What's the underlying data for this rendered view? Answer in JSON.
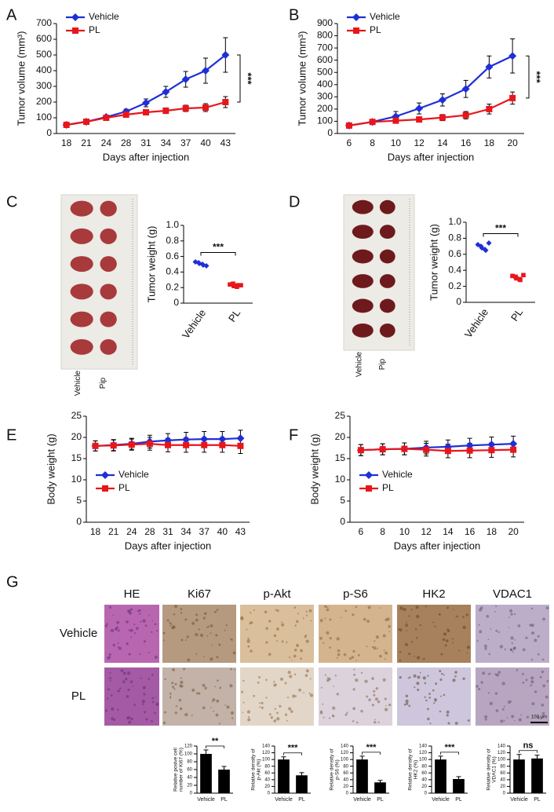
{
  "chart_data": [
    {
      "panel": "A",
      "type": "line",
      "ylabel": "Tumor volume (mm³)",
      "xlabel": "Days after injection",
      "categories": [
        "18",
        "21",
        "24",
        "28",
        "31",
        "34",
        "37",
        "40",
        "43"
      ],
      "series": [
        {
          "name": "Vehicle",
          "color": "#1f2fd6",
          "values": [
            55,
            75,
            105,
            140,
            195,
            265,
            345,
            400,
            500
          ],
          "errors": [
            10,
            10,
            10,
            15,
            25,
            35,
            50,
            80,
            110
          ]
        },
        {
          "name": "PL",
          "color": "#e8161b",
          "values": [
            55,
            75,
            100,
            120,
            135,
            145,
            160,
            165,
            200
          ],
          "errors": [
            10,
            10,
            10,
            12,
            15,
            18,
            20,
            25,
            35
          ]
        }
      ],
      "ylim": [
        0,
        700
      ],
      "yticks": [
        0,
        100,
        200,
        300,
        400,
        500,
        600,
        700
      ],
      "legend": "upper left",
      "annotation": "***"
    },
    {
      "panel": "B",
      "type": "line",
      "ylabel": "Tumor volume (mm³)",
      "xlabel": "Days after injection",
      "categories": [
        "6",
        "8",
        "10",
        "12",
        "14",
        "16",
        "18",
        "20"
      ],
      "series": [
        {
          "name": "Vehicle",
          "color": "#1f2fd6",
          "values": [
            65,
            95,
            140,
            205,
            275,
            365,
            545,
            635
          ],
          "errors": [
            10,
            15,
            40,
            45,
            50,
            70,
            90,
            140
          ]
        },
        {
          "name": "PL",
          "color": "#e8161b",
          "values": [
            65,
            95,
            105,
            115,
            130,
            150,
            200,
            290
          ],
          "errors": [
            10,
            15,
            20,
            20,
            25,
            30,
            40,
            50
          ]
        }
      ],
      "ylim": [
        0,
        900
      ],
      "yticks": [
        0,
        100,
        200,
        300,
        400,
        500,
        600,
        700,
        800,
        900
      ],
      "legend": "upper left",
      "annotation": "***"
    },
    {
      "panel": "C",
      "type": "dot",
      "ylabel": "Tumor weight (g)",
      "photo_labels": [
        "Vehicle",
        "Pip"
      ],
      "categories": [
        "Vehicle",
        "PL"
      ],
      "colors": [
        "#1f2fd6",
        "#e8161b"
      ],
      "values": [
        [
          0.53,
          0.51,
          0.49,
          0.52,
          0.5,
          0.48
        ],
        [
          0.24,
          0.22,
          0.23,
          0.25,
          0.21,
          0.23
        ]
      ],
      "ylim": [
        0,
        1
      ],
      "yticks": [
        0,
        0.2,
        0.4,
        0.6,
        0.8,
        {
          "value": 1,
          "label": "1.0"
        }
      ],
      "annotation": "***"
    },
    {
      "panel": "D",
      "type": "dot",
      "ylabel": "Tumor weight (g)",
      "photo_labels": [
        "Vehicle",
        "Pip"
      ],
      "categories": [
        "Vehicle",
        "PL"
      ],
      "colors": [
        "#1f2fd6",
        "#e8161b"
      ],
      "values": [
        [
          0.72,
          0.68,
          0.65,
          0.7,
          0.66,
          0.74
        ],
        [
          0.33,
          0.3,
          0.28,
          0.32,
          0.29,
          0.34
        ]
      ],
      "ylim": [
        0,
        1
      ],
      "yticks": [
        0,
        0.2,
        0.4,
        0.6,
        0.8,
        {
          "value": 1,
          "label": "1.0"
        }
      ],
      "annotation": "***"
    },
    {
      "panel": "E",
      "type": "line",
      "ylabel": "Body weight (g)",
      "xlabel": "Days after injection",
      "categories": [
        "18",
        "21",
        "24",
        "28",
        "31",
        "34",
        "37",
        "40",
        "43"
      ],
      "series": [
        {
          "name": "Vehicle",
          "color": "#1f2fd6",
          "values": [
            18,
            18.2,
            18.5,
            19,
            19.3,
            19.5,
            19.6,
            19.6,
            19.8
          ],
          "errors": [
            1.2,
            1.3,
            1.3,
            1.5,
            1.6,
            1.7,
            1.8,
            1.8,
            1.9
          ]
        },
        {
          "name": "PL",
          "color": "#e8161b",
          "values": [
            18,
            18.1,
            18.3,
            18.5,
            18.2,
            18.2,
            18.2,
            18.2,
            18
          ],
          "errors": [
            1.2,
            1.3,
            1.3,
            1.5,
            1.6,
            1.7,
            1.7,
            1.7,
            1.8
          ]
        }
      ],
      "ylim": [
        0,
        25
      ],
      "yticks": [
        0,
        5,
        10,
        15,
        20,
        25
      ],
      "legend": "lower left"
    },
    {
      "panel": "F",
      "type": "line",
      "ylabel": "Body weight (g)",
      "xlabel": "Days after injection",
      "categories": [
        "6",
        "8",
        "10",
        "12",
        "14",
        "16",
        "18",
        "20"
      ],
      "series": [
        {
          "name": "Vehicle",
          "color": "#1f2fd6",
          "values": [
            17,
            17.2,
            17.3,
            17.6,
            17.8,
            18.1,
            18.3,
            18.5
          ],
          "errors": [
            1.3,
            1.3,
            1.4,
            1.5,
            1.6,
            1.7,
            1.8,
            1.8
          ]
        },
        {
          "name": "PL",
          "color": "#e8161b",
          "values": [
            17,
            17.2,
            17.3,
            17.1,
            16.8,
            16.9,
            17,
            17.1
          ],
          "errors": [
            1.3,
            1.3,
            1.4,
            1.5,
            1.6,
            1.7,
            1.7,
            1.7
          ]
        }
      ],
      "ylim": [
        0,
        25
      ],
      "yticks": [
        0,
        5,
        10,
        15,
        20,
        25
      ],
      "legend": "lower left"
    },
    {
      "panel": "G",
      "type": "image_grid",
      "columns": [
        "HE",
        "Ki67",
        "p-Akt",
        "p-S6",
        "HK2",
        "VDAC1"
      ],
      "rows": [
        "Vehicle",
        "PL"
      ],
      "scale_bar": "100 μm"
    },
    {
      "type": "bar",
      "ylabel": [
        "Relative posive cell",
        "number of Ki67 (%)"
      ],
      "categories": [
        "Vehicle",
        "PL"
      ],
      "values": [
        100,
        60
      ],
      "errors": [
        10,
        8
      ],
      "color": "#000000",
      "ylim": [
        0,
        120
      ],
      "yticks": [
        0,
        20,
        40,
        60,
        80,
        100,
        120
      ],
      "annotation": "**"
    },
    {
      "type": "bar",
      "ylabel": [
        "Relative density of",
        "p-Akt (%)"
      ],
      "categories": [
        "Vehicle",
        "PL"
      ],
      "values": [
        100,
        53
      ],
      "errors": [
        8,
        8
      ],
      "color": "#000000",
      "ylim": [
        0,
        140
      ],
      "yticks": [
        0,
        20,
        40,
        60,
        80,
        100,
        120,
        140
      ],
      "annotation": "***"
    },
    {
      "type": "bar",
      "ylabel": [
        "Relative density of",
        "p-S6 (%)"
      ],
      "categories": [
        "Vehicle",
        "PL"
      ],
      "values": [
        100,
        32
      ],
      "errors": [
        10,
        6
      ],
      "color": "#000000",
      "ylim": [
        0,
        140
      ],
      "yticks": [
        0,
        20,
        40,
        60,
        80,
        100,
        120,
        140
      ],
      "annotation": "***"
    },
    {
      "type": "bar",
      "ylabel": [
        "Relative density of",
        "HK2 (%)"
      ],
      "categories": [
        "Vehicle",
        "PL"
      ],
      "values": [
        100,
        42
      ],
      "errors": [
        10,
        7
      ],
      "color": "#000000",
      "ylim": [
        0,
        140
      ],
      "yticks": [
        0,
        20,
        40,
        60,
        80,
        100,
        120,
        140
      ],
      "annotation": "***"
    },
    {
      "type": "bar",
      "ylabel": [
        "Relative density of",
        "VDAC1 (%)"
      ],
      "categories": [
        "Vehicle",
        "PL"
      ],
      "values": [
        100,
        103
      ],
      "errors": [
        15,
        10
      ],
      "color": "#000000",
      "ylim": [
        0,
        140
      ],
      "yticks": [
        0,
        20,
        40,
        60,
        80,
        100,
        120,
        140
      ],
      "annotation": "ns"
    }
  ]
}
